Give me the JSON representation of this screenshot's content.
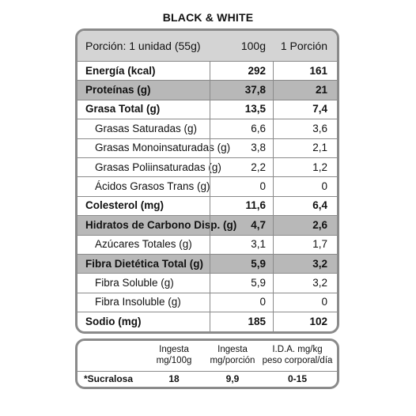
{
  "title": "BLACK & WHITE",
  "table": {
    "header": {
      "label": "Porción: 1 unidad (55g)",
      "col1": "100g",
      "col2": "1 Porción"
    },
    "rows": [
      {
        "label": "Energía (kcal)",
        "v1": "292",
        "v2": "161",
        "style": "bold"
      },
      {
        "label": "Proteínas (g)",
        "v1": "37,8",
        "v2": "21",
        "style": "bold-shaded"
      },
      {
        "label": "Grasa Total (g)",
        "v1": "13,5",
        "v2": "7,4",
        "style": "bold"
      },
      {
        "label": "Grasas Saturadas (g)",
        "v1": "6,6",
        "v2": "3,6",
        "style": "sub"
      },
      {
        "label": "Grasas Monoinsaturadas (g)",
        "v1": "3,8",
        "v2": "2,1",
        "style": "sub"
      },
      {
        "label": "Grasas Poliinsaturadas (g)",
        "v1": "2,2",
        "v2": "1,2",
        "style": "sub"
      },
      {
        "label": "Ácidos Grasos Trans (g)",
        "v1": "0",
        "v2": "0",
        "style": "sub"
      },
      {
        "label": "Colesterol (mg)",
        "v1": "11,6",
        "v2": "6,4",
        "style": "bold"
      },
      {
        "label": "Hidratos de Carbono Disp. (g)",
        "v1": "4,7",
        "v2": "2,6",
        "style": "bold-shaded"
      },
      {
        "label": "Azúcares Totales (g)",
        "v1": "3,1",
        "v2": "1,7",
        "style": "sub"
      },
      {
        "label": "Fibra Dietética Total (g)",
        "v1": "5,9",
        "v2": "3,2",
        "style": "bold-shaded"
      },
      {
        "label": "Fibra Soluble (g)",
        "v1": "5,9",
        "v2": "3,2",
        "style": "sub"
      },
      {
        "label": "Fibra Insoluble (g)",
        "v1": "0",
        "v2": "0",
        "style": "sub"
      },
      {
        "label": "Sodio (mg)",
        "v1": "185",
        "v2": "102",
        "style": "bold"
      }
    ]
  },
  "ida": {
    "headers": [
      {
        "line1": "Ingesta",
        "line2": "mg/100g"
      },
      {
        "line1": "Ingesta",
        "line2": "mg/porción"
      },
      {
        "line1": "I.D.A. mg/kg",
        "line2": "peso corporal/día"
      }
    ],
    "row": {
      "label": "*Sucralosa",
      "v1": "18",
      "v2": "9,9",
      "v3": "0-15"
    }
  }
}
